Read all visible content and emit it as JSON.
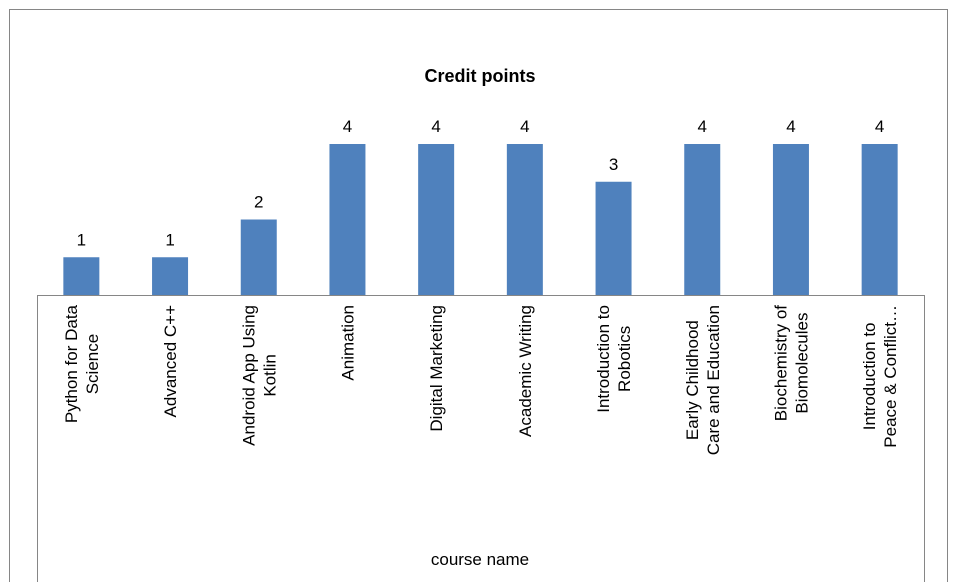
{
  "chart_data": {
    "type": "bar",
    "title": "Credit  points",
    "x_label": "course name",
    "categories": [
      [
        "Python for Data",
        "Science"
      ],
      [
        "Advanced C++"
      ],
      [
        "Android App Using",
        "Kotlin"
      ],
      [
        "Animation"
      ],
      [
        "Digital Marketing"
      ],
      [
        "Academic Writing"
      ],
      [
        "Introduction to",
        "Robotics"
      ],
      [
        "Early Childhood",
        "Care and Education"
      ],
      [
        "Biochemistry of",
        "Biomolecules"
      ],
      [
        "Introduction to",
        "Peace & Conflict…"
      ]
    ],
    "values": [
      1,
      1,
      2,
      4,
      4,
      4,
      3,
      4,
      4,
      4
    ],
    "color": "#4f81bd"
  }
}
